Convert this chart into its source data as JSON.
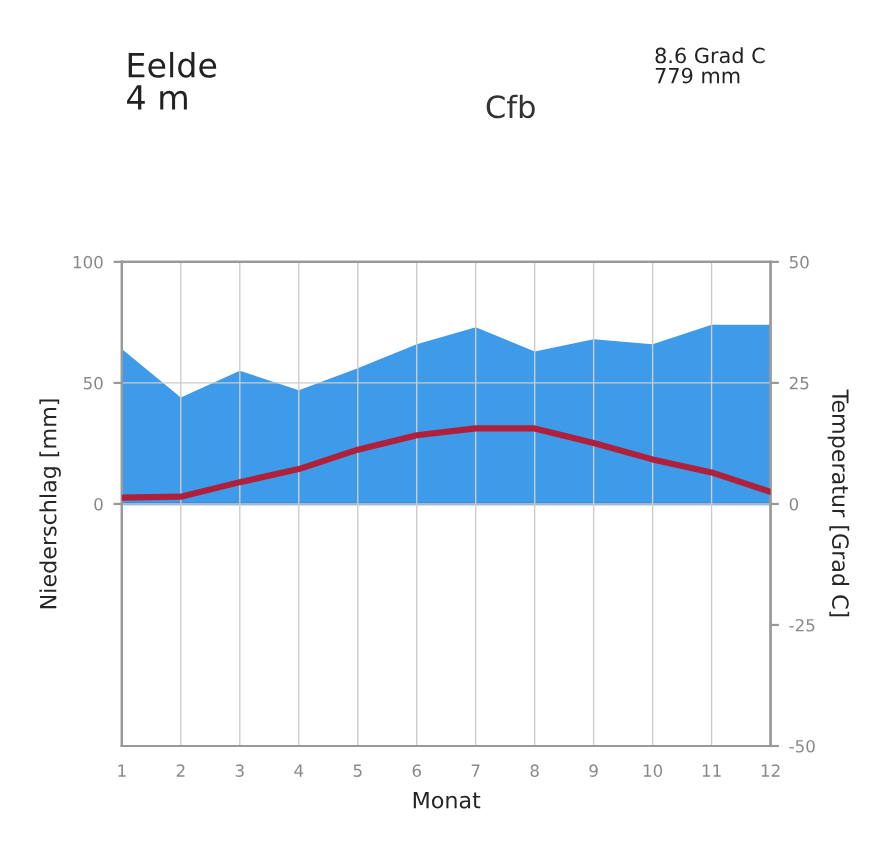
{
  "chart_data": {
    "type": "area",
    "title": "Cfb",
    "xlabel": "Monat",
    "ylabel": "Niederschlag [mm]",
    "y2label": "Temperatur [Grad C]",
    "annotations": [
      "Eelde\n4 m",
      "8.6 Grad C\n779 mm"
    ],
    "x": [
      1,
      2,
      3,
      4,
      5,
      6,
      7,
      8,
      9,
      10,
      11,
      12
    ],
    "series": [
      {
        "color": "#3d9be9",
        "values": [
          64,
          44,
          55,
          47,
          56,
          66,
          73,
          63,
          68,
          66,
          74,
          74
        ]
      },
      {
        "type": "line",
        "axis": "y2",
        "color": "#b0203a",
        "values": [
          1.3,
          1.5,
          4.5,
          7.2,
          11.2,
          14.2,
          15.6,
          15.6,
          12.6,
          9.2,
          6.5,
          2.5
        ]
      }
    ],
    "xlim": [
      1,
      12
    ],
    "xticks": [
      1,
      2,
      3,
      4,
      5,
      6,
      7,
      8,
      9,
      10,
      11,
      12
    ],
    "ylim": [
      -100,
      100
    ],
    "yticks": [
      0,
      50,
      100
    ],
    "y2lim": [
      -50,
      50
    ],
    "y2ticks": [
      -50,
      -25,
      0,
      25,
      50
    ],
    "ref_lines": [
      {
        "axis": "y",
        "value": 0,
        "color": "#3d7fd0"
      }
    ],
    "grid": true
  }
}
